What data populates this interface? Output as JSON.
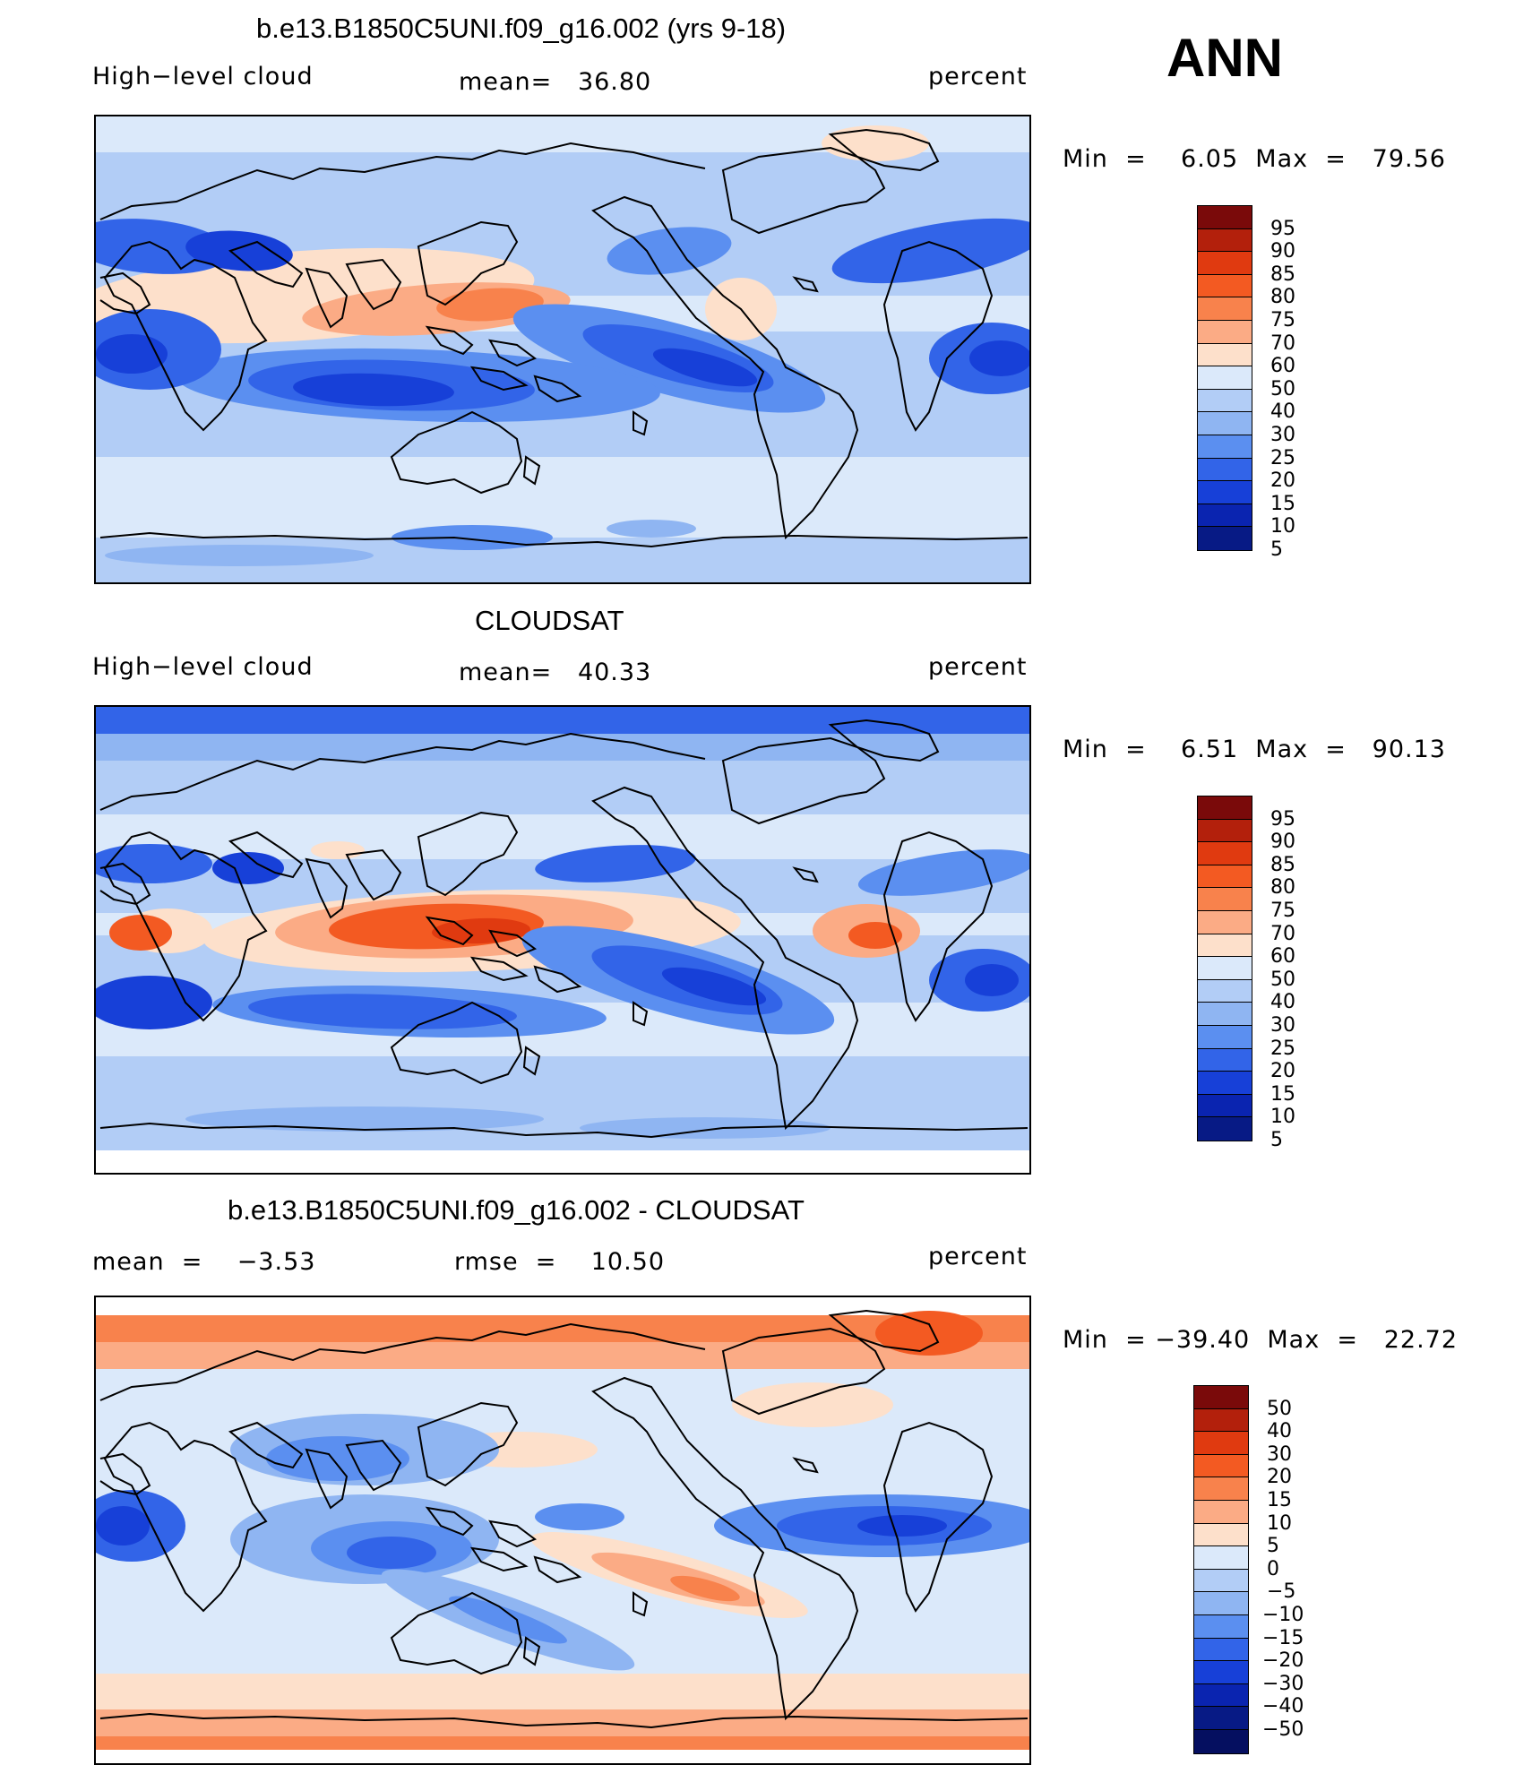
{
  "season": "ANN",
  "panels": [
    {
      "id": "model",
      "title": "b.e13.B1850C5UNI.f09_g16.002 (yrs 9-18)",
      "left_label": "High−level cloud",
      "center_label": "mean=   36.80",
      "right_label": "percent",
      "minmax": "Min  =    6.05  Max  =   79.56",
      "colorbar": {
        "colors": [
          "#7a0a0a",
          "#b3200c",
          "#e03a10",
          "#f35a22",
          "#f8824c",
          "#fbab85",
          "#fde0cb",
          "#dbe9fa",
          "#b2cdf6",
          "#8fb5f2",
          "#5b8ff0",
          "#3264e8",
          "#1740d8",
          "#0a24b0",
          "#071a85"
        ],
        "labels": [
          "95",
          "90",
          "85",
          "80",
          "75",
          "70",
          "60",
          "50",
          "40",
          "30",
          "25",
          "20",
          "15",
          "10",
          "5"
        ]
      },
      "map_style": "model"
    },
    {
      "id": "obs",
      "title": "CLOUDSAT",
      "left_label": "High−level cloud",
      "center_label": "mean=   40.33",
      "right_label": "percent",
      "minmax": "Min  =    6.51  Max  =   90.13",
      "colorbar": {
        "colors": [
          "#7a0a0a",
          "#b3200c",
          "#e03a10",
          "#f35a22",
          "#f8824c",
          "#fbab85",
          "#fde0cb",
          "#dbe9fa",
          "#b2cdf6",
          "#8fb5f2",
          "#5b8ff0",
          "#3264e8",
          "#1740d8",
          "#0a24b0",
          "#071a85"
        ],
        "labels": [
          "95",
          "90",
          "85",
          "80",
          "75",
          "70",
          "60",
          "50",
          "40",
          "30",
          "25",
          "20",
          "15",
          "10",
          "5"
        ]
      },
      "map_style": "obs"
    },
    {
      "id": "diff",
      "title": "b.e13.B1850C5UNI.f09_g16.002 - CLOUDSAT",
      "left_label": "mean  =    −3.53",
      "center_label": "rmse  =    10.50",
      "right_label": "percent",
      "minmax": "Min  = −39.40  Max  =   22.72",
      "colorbar": {
        "colors": [
          "#7a0a0a",
          "#b3200c",
          "#e03a10",
          "#f35a22",
          "#f8824c",
          "#fbab85",
          "#fde0cb",
          "#dbe9fa",
          "#b2cdf6",
          "#8fb5f2",
          "#5b8ff0",
          "#3264e8",
          "#1740d8",
          "#0a24b0",
          "#071a85",
          "#050f60"
        ],
        "labels": [
          "50",
          "40",
          "30",
          "20",
          "15",
          "10",
          "5",
          "0",
          "−5",
          "−10",
          "−15",
          "−20",
          "−30",
          "−40",
          "−50"
        ]
      },
      "map_style": "diff"
    }
  ]
}
